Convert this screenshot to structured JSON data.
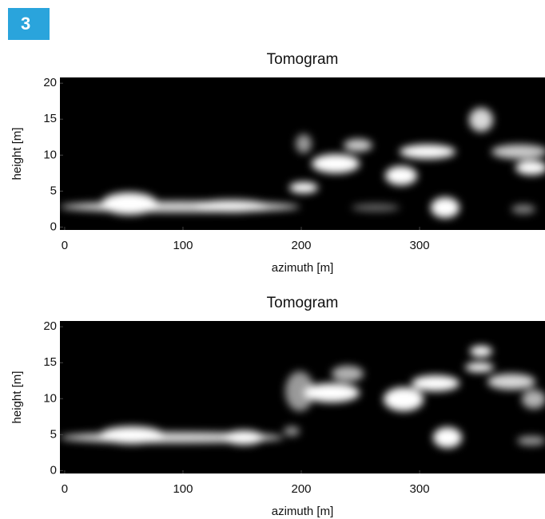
{
  "figure_label": "3",
  "chart_data": [
    {
      "type": "image",
      "title": "Tomogram",
      "xlabel": "azimuth [m]",
      "ylabel": "height [m]",
      "xlim": [
        -4,
        406
      ],
      "ylim": [
        -0.4,
        20.8
      ],
      "xticks": [
        0,
        100,
        200,
        300
      ],
      "yticks": [
        0,
        5,
        10,
        15,
        20
      ]
    },
    {
      "type": "image",
      "title": "Tomogram",
      "xlabel": "azimuth [m]",
      "ylabel": "height [m]",
      "xlim": [
        -4,
        406
      ],
      "ylim": [
        -0.4,
        20.8
      ],
      "xticks": [
        0,
        100,
        200,
        300
      ],
      "yticks": [
        0,
        5,
        10,
        15,
        20
      ]
    }
  ]
}
